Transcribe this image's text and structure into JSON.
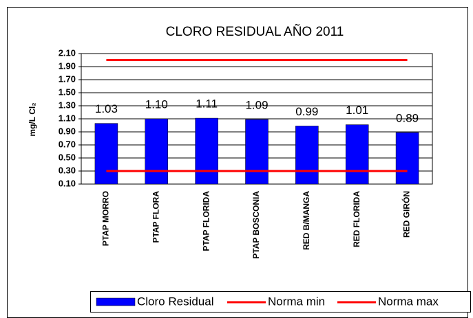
{
  "chart_data": {
    "type": "bar",
    "title": "CLORO RESIDUAL AÑO 2011",
    "y_label": "mg/L Cl₂",
    "categories": [
      "PTAP MORRO",
      "PTAP FLORA",
      "PTAP FLORIDA",
      "PTAP BOSCONIA",
      "RED B/MANGA",
      "RED FLORIDA",
      "RED GIRÓN"
    ],
    "series": [
      {
        "name": "Cloro Residual",
        "type": "bar",
        "color": "#0000ff",
        "values": [
          1.03,
          1.1,
          1.11,
          1.09,
          0.99,
          1.01,
          0.89
        ],
        "value_labels": [
          "1.03",
          "1.10",
          "1.11",
          "1.09",
          "0.99",
          "1.01",
          "0.89"
        ]
      },
      {
        "name": "Norma min",
        "type": "line",
        "color": "#ff0000",
        "values": [
          0.3,
          0.3,
          0.3,
          0.3,
          0.3,
          0.3,
          0.3
        ]
      },
      {
        "name": "Norma max",
        "type": "line",
        "color": "#ff0000",
        "values": [
          2.0,
          2.0,
          2.0,
          2.0,
          2.0,
          2.0,
          2.0
        ]
      }
    ],
    "ylim": [
      0.1,
      2.1
    ],
    "yticks": [
      {
        "value": 0.1,
        "label": "0.10"
      },
      {
        "value": 0.3,
        "label": "0.30"
      },
      {
        "value": 0.5,
        "label": "0.50"
      },
      {
        "value": 0.7,
        "label": "0.70"
      },
      {
        "value": 0.9,
        "label": "0.90"
      },
      {
        "value": 1.1,
        "label": "1.10"
      },
      {
        "value": 1.3,
        "label": "1.30"
      },
      {
        "value": 1.5,
        "label": "1.50"
      },
      {
        "value": 1.7,
        "label": "1.70"
      },
      {
        "value": 1.9,
        "label": "1.90"
      },
      {
        "value": 2.1,
        "label": "2.10"
      }
    ],
    "grid": true,
    "legend": "bottom"
  }
}
